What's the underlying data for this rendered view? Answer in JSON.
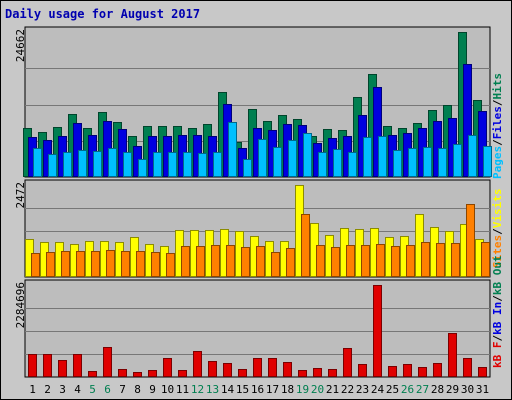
{
  "title": "Daily usage for August 2017",
  "colors": {
    "hits": "#007f50",
    "files": "#0000e0",
    "pages": "#00c0ff",
    "visits": "#ffff00",
    "sites": "#ff8000",
    "kb_in": "#0000e0",
    "kb_out": "#007f50",
    "kb_f": "#e00000",
    "weekend_day": "#007f50",
    "weekday": "#000000"
  },
  "chart_data": [
    {
      "type": "bar",
      "panel": "hits",
      "categories": [
        "1",
        "2",
        "3",
        "4",
        "5",
        "6",
        "7",
        "8",
        "9",
        "10",
        "11",
        "12",
        "13",
        "14",
        "15",
        "16",
        "17",
        "18",
        "19",
        "20",
        "21",
        "22",
        "23",
        "24",
        "25",
        "26",
        "27",
        "28",
        "29",
        "30",
        "31"
      ],
      "weekend_days": [
        "5",
        "6",
        "12",
        "13",
        "19",
        "20",
        "26",
        "27"
      ],
      "max_label": "24662",
      "ylim": [
        0,
        24662
      ],
      "grid": true,
      "legend": "right-vertical",
      "legend_items": [
        "Pages",
        "Files",
        "Hits"
      ],
      "series": [
        {
          "name": "Hits",
          "values": [
            8400,
            7700,
            8500,
            10800,
            8300,
            11000,
            9300,
            6900,
            8700,
            8600,
            8600,
            8400,
            9000,
            14500,
            6000,
            11500,
            9600,
            10500,
            9900,
            6900,
            8200,
            8000,
            13600,
            17500,
            8700,
            8300,
            9200,
            11400,
            12300,
            24662,
            13100
          ]
        },
        {
          "name": "Files",
          "values": [
            6800,
            6300,
            6900,
            9200,
            7200,
            9500,
            8200,
            5200,
            7000,
            7000,
            7100,
            7200,
            7000,
            12500,
            4900,
            8400,
            8000,
            9000,
            8800,
            5800,
            6600,
            6900,
            10600,
            15300,
            7200,
            7400,
            8400,
            9500,
            10100,
            19200,
            11300
          ]
        },
        {
          "name": "Pages",
          "values": [
            5000,
            3900,
            4200,
            4600,
            4500,
            4900,
            4200,
            3000,
            4200,
            4200,
            4300,
            4100,
            4200,
            9400,
            3100,
            6500,
            5100,
            6300,
            7400,
            4300,
            4700,
            4200,
            6800,
            7000,
            4600,
            5000,
            5100,
            5000,
            5600,
            7200,
            5300
          ]
        }
      ]
    },
    {
      "type": "bar",
      "panel": "visits",
      "categories": [
        "1",
        "2",
        "3",
        "4",
        "5",
        "6",
        "7",
        "8",
        "9",
        "10",
        "11",
        "12",
        "13",
        "14",
        "15",
        "16",
        "17",
        "18",
        "19",
        "20",
        "21",
        "22",
        "23",
        "24",
        "25",
        "26",
        "27",
        "28",
        "29",
        "30",
        "31"
      ],
      "max_label": "2472",
      "ylim": [
        0,
        2472
      ],
      "grid": true,
      "legend": "right-vertical",
      "legend_items": [
        "Sites",
        "Visits"
      ],
      "series": [
        {
          "name": "Visits",
          "values": [
            1020,
            940,
            930,
            900,
            960,
            980,
            930,
            1070,
            890,
            820,
            1260,
            1260,
            1260,
            1300,
            1240,
            1090,
            960,
            960,
            2472,
            1440,
            1140,
            1310,
            1300,
            1330,
            1080,
            1100,
            1700,
            1340,
            1240,
            1420,
            1010
          ]
        },
        {
          "name": "Sites",
          "values": [
            650,
            680,
            690,
            710,
            690,
            730,
            700,
            690,
            680,
            650,
            830,
            840,
            860,
            850,
            800,
            830,
            680,
            770,
            1700,
            860,
            800,
            860,
            870,
            880,
            820,
            870,
            950,
            920,
            910,
            1950,
            940
          ]
        }
      ]
    },
    {
      "type": "bar",
      "panel": "kbytes",
      "categories": [
        "1",
        "2",
        "3",
        "4",
        "5",
        "6",
        "7",
        "8",
        "9",
        "10",
        "11",
        "12",
        "13",
        "14",
        "15",
        "16",
        "17",
        "18",
        "19",
        "20",
        "21",
        "22",
        "23",
        "24",
        "25",
        "26",
        "27",
        "28",
        "29",
        "30",
        "31"
      ],
      "max_label": "2284696",
      "ylim": [
        0,
        2284696
      ],
      "grid": true,
      "legend": "right-vertical",
      "legend_items": [
        "kB F",
        "kB In",
        "kB Out"
      ],
      "series": [
        {
          "name": "kB F",
          "values": [
            560000,
            560000,
            410000,
            570000,
            140000,
            740000,
            210000,
            130000,
            180000,
            460000,
            180000,
            650000,
            390000,
            350000,
            190000,
            470000,
            460000,
            380000,
            170000,
            220000,
            210000,
            720000,
            330000,
            2284696,
            280000,
            330000,
            240000,
            340000,
            1100000,
            470000,
            240000
          ]
        },
        {
          "name": "kB In",
          "values": [
            0,
            0,
            0,
            0,
            0,
            0,
            0,
            0,
            0,
            0,
            0,
            0,
            0,
            0,
            0,
            0,
            0,
            0,
            0,
            0,
            0,
            0,
            0,
            0,
            0,
            0,
            0,
            0,
            0,
            0,
            0
          ]
        },
        {
          "name": "kB Out",
          "values": [
            0,
            0,
            0,
            0,
            0,
            0,
            0,
            0,
            0,
            0,
            0,
            0,
            0,
            0,
            0,
            0,
            0,
            0,
            0,
            0,
            0,
            0,
            0,
            0,
            0,
            0,
            0,
            0,
            0,
            0,
            0
          ]
        }
      ]
    }
  ]
}
